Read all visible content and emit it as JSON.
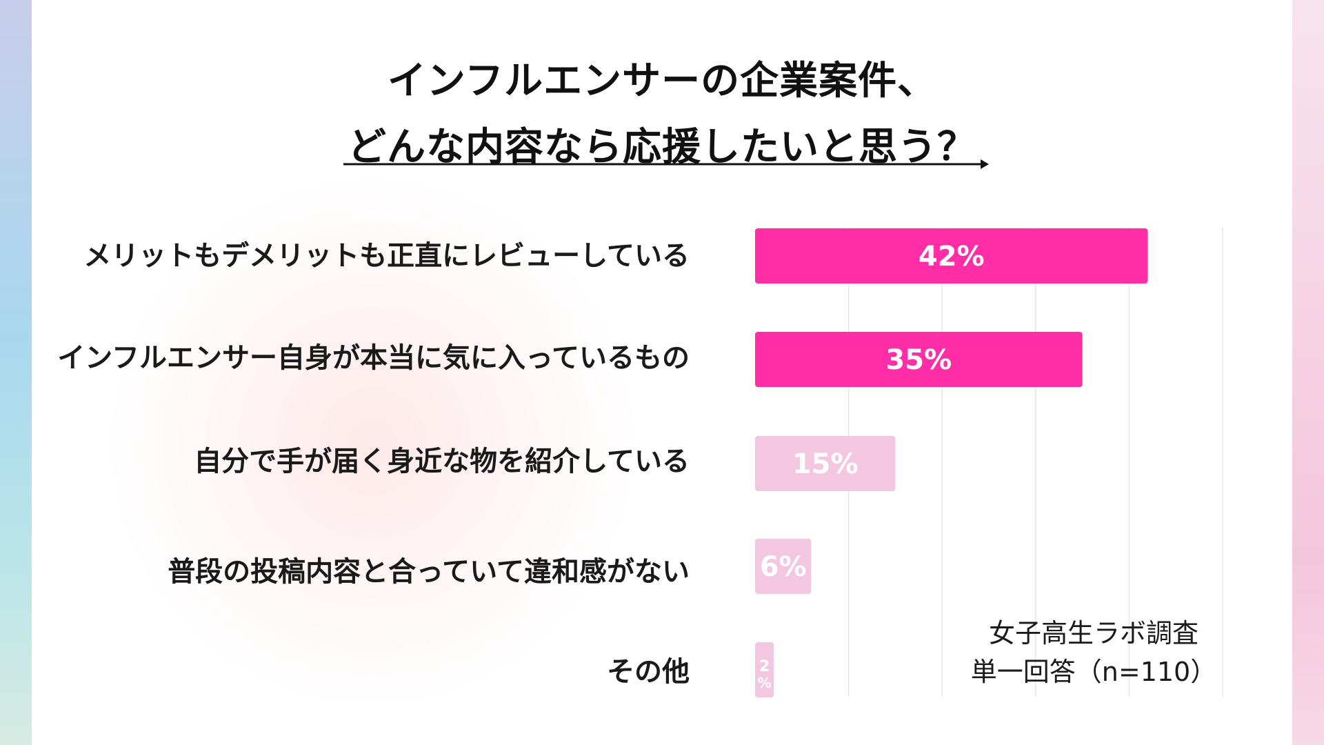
{
  "title": {
    "line1": "インフルエンサーの企業案件、",
    "line2": "どんな内容なら応援したいと思う？"
  },
  "note": {
    "line1": "女子高生ラボ調査",
    "line2": "単一回答（n=110）"
  },
  "colors": {
    "highlight": "#ff2ea6",
    "muted": "#f2c7df",
    "grid": "#e6e6e6"
  },
  "chart_data": {
    "type": "bar",
    "orientation": "horizontal",
    "categories": [
      "メリットもデメリットも正直にレビューしている",
      "インフルエンサー自身が本当に気に入っているもの",
      "自分で手が届く身近な物を紹介している",
      "普段の投稿内容と合っていて違和感がない",
      "その他"
    ],
    "values": [
      42,
      35,
      15,
      6,
      2
    ],
    "value_labels": [
      "42%",
      "35%",
      "15%",
      "6%",
      "2\n%"
    ],
    "highlighted": [
      true,
      true,
      false,
      false,
      false
    ],
    "xlim": [
      0,
      50
    ],
    "grid": true
  }
}
